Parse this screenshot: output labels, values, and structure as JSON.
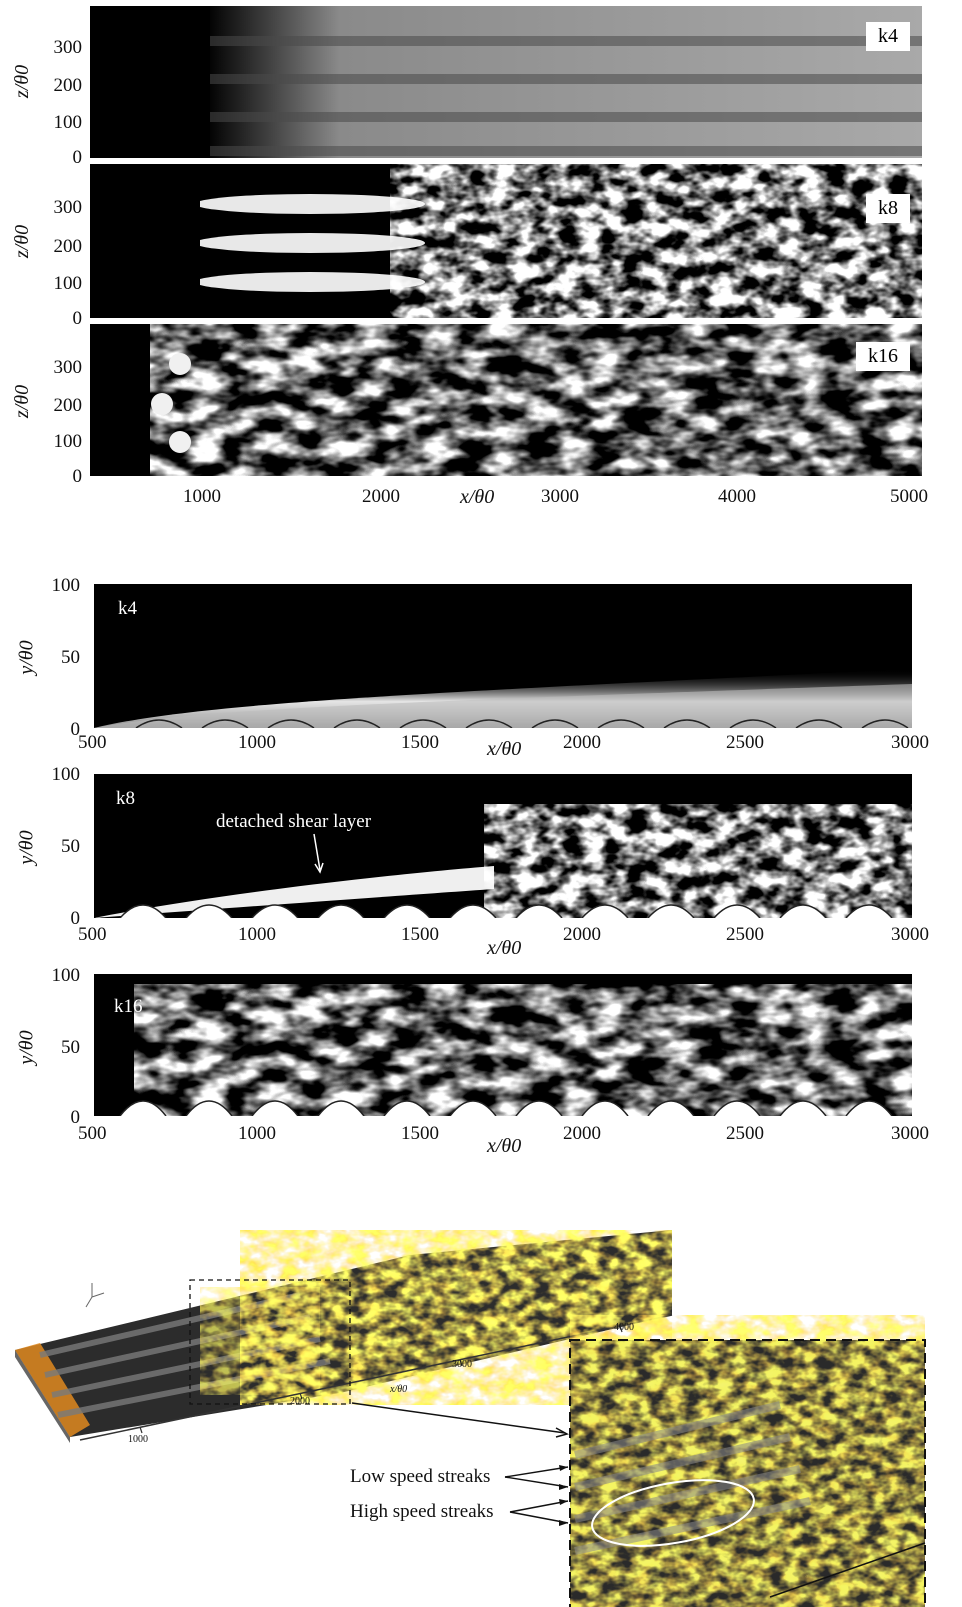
{
  "top_figure": {
    "panels": [
      {
        "tag": "k4",
        "y_ticks": [
          "300",
          "200",
          "100",
          "0"
        ]
      },
      {
        "tag": "k8",
        "y_ticks": [
          "300",
          "200",
          "100",
          "0"
        ]
      },
      {
        "tag": "k16",
        "y_ticks": [
          "300",
          "200",
          "100",
          "0"
        ]
      }
    ],
    "y_label": "z/θ0",
    "x_label": "x/θ0",
    "x_ticks": [
      "1000",
      "2000",
      "3000",
      "4000",
      "5000"
    ]
  },
  "middle_figure": {
    "panels": [
      {
        "tag": "k4",
        "y_ticks": [
          "100",
          "50",
          "0"
        ]
      },
      {
        "tag": "k8",
        "y_ticks": [
          "100",
          "50",
          "0"
        ],
        "annotation": "detached shear layer"
      },
      {
        "tag": "k16",
        "y_ticks": [
          "100",
          "50",
          "0"
        ]
      }
    ],
    "y_label": "y/θ0",
    "x_label": "x/θ0",
    "x_ticks": [
      "500",
      "1000",
      "1500",
      "2000",
      "2500",
      "3000"
    ]
  },
  "bottom_figure": {
    "axis_ticks": [
      "1000",
      "2000",
      "3000",
      "4000"
    ],
    "axis_label": "x/θ0",
    "annotations": [
      "Low speed streaks",
      "High speed streaks"
    ]
  }
}
